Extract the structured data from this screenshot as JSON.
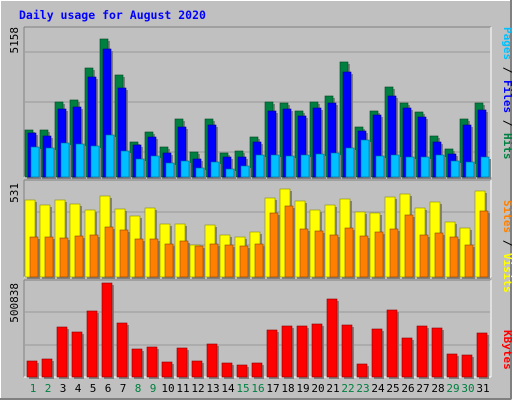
{
  "chart_data": {
    "type": "bar",
    "title": "Daily usage for August 2020",
    "categories": [
      "1",
      "2",
      "3",
      "4",
      "5",
      "6",
      "7",
      "8",
      "9",
      "10",
      "11",
      "12",
      "13",
      "14",
      "15",
      "16",
      "17",
      "18",
      "19",
      "20",
      "21",
      "22",
      "23",
      "24",
      "25",
      "26",
      "27",
      "28",
      "29",
      "30",
      "31"
    ],
    "weekend_days": [
      "1",
      "2",
      "8",
      "9",
      "15",
      "16",
      "22",
      "23",
      "29",
      "30"
    ],
    "panels": [
      {
        "axis_label": "5158",
        "ymax": 5158,
        "side_labels": [
          {
            "text": "Pages",
            "color": "#00c0ff"
          },
          {
            "text": " / ",
            "color": "#000000"
          },
          {
            "text": "Files",
            "color": "#0000ff"
          },
          {
            "text": " / ",
            "color": "#000000"
          },
          {
            "text": "Hits",
            "color": "#008040"
          }
        ],
        "series": [
          {
            "name": "Hits",
            "color": "#008040",
            "values": [
              1638,
              1638,
              2604,
              2672,
              3810,
              4810,
              3543,
              1235,
              1552,
              1045,
              2015,
              885,
              2024,
              850,
              920,
              1390,
              2621,
              2586,
              2288,
              2604,
              2827,
              4016,
              1750,
              2309,
              3139,
              2588,
              2279,
              1425,
              972,
              2035,
              2587
            ]
          },
          {
            "name": "Files",
            "color": "#0000ff",
            "values": [
              1546,
              1445,
              2364,
              2431,
              3470,
              4457,
              3105,
              1124,
              1402,
              830,
              1728,
              621,
              1795,
              706,
              681,
              1212,
              2300,
              2360,
              2137,
              2417,
              2586,
              3657,
              1606,
              2154,
              2826,
              2413,
              2089,
              1211,
              789,
              1808,
              2336
            ]
          },
          {
            "name": "Pages",
            "color": "#00c0ff",
            "values": [
              1030,
              1004,
              1172,
              1148,
              1074,
              1456,
              897,
              633,
              721,
              474,
              560,
              325,
              510,
              271,
              389,
              774,
              776,
              722,
              781,
              816,
              836,
              1010,
              1306,
              721,
              775,
              690,
              713,
              778,
              554,
              514,
              682
            ]
          }
        ]
      },
      {
        "axis_label": "531",
        "ymax": 531,
        "side_labels": [
          {
            "text": "Sites",
            "color": "#ff8000"
          },
          {
            "text": " / ",
            "color": "#000000"
          },
          {
            "text": "Visits",
            "color": "#ffff00"
          }
        ],
        "series": [
          {
            "name": "Visits",
            "color": "#ffff00",
            "values": [
              433,
              407,
              435,
              410,
              379,
              455,
              385,
              343,
              390,
              299,
              297,
              181,
              292,
              240,
              227,
              253,
              446,
              499,
              427,
              380,
              405,
              443,
              370,
              361,
              453,
              470,
              390,
              424,
              308,
              274,
              486
            ]
          },
          {
            "name": "Sites",
            "color": "#ff8000",
            "values": [
              224,
              225,
              219,
              230,
              235,
              282,
              265,
              213,
              216,
              188,
              206,
              174,
              186,
              181,
              176,
              186,
              362,
              401,
              271,
              258,
              240,
              275,
              230,
              256,
              270,
              349,
              240,
              250,
              227,
              180,
              373
            ]
          }
        ]
      },
      {
        "axis_label": "500838",
        "ymax": 500838,
        "side_labels": [
          {
            "text": "KBytes",
            "color": "#ff0000"
          }
        ],
        "series": [
          {
            "name": "KBytes",
            "color": "#ff0000",
            "values": [
              85000,
              95000,
              265000,
              238000,
              351000,
              500838,
              289000,
              149000,
              158000,
              78000,
              153000,
              86000,
              175000,
              75000,
              64000,
              75000,
              248000,
              272000,
              271000,
              285000,
              418000,
              279000,
              71000,
              255000,
              358000,
              209000,
              273000,
              260000,
              124000,
              115000,
              237000
            ]
          }
        ]
      }
    ]
  }
}
